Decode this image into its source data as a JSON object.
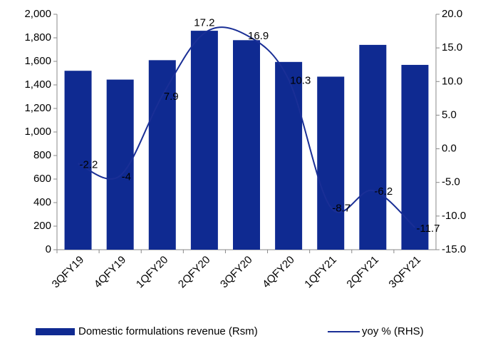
{
  "chart_data": {
    "type": "bar_line",
    "categories": [
      "3QFY19",
      "4QFY19",
      "1QFY20",
      "2QFY20",
      "3QFY20",
      "4QFY20",
      "1QFY21",
      "2QFY21",
      "3QFY21"
    ],
    "series": [
      {
        "name": "Domestic formulations revenue (Rsm)",
        "type": "bar",
        "color": "#0f2a91",
        "values": [
          1520,
          1445,
          1610,
          1860,
          1780,
          1595,
          1470,
          1740,
          1570
        ]
      },
      {
        "name": "yoy % (RHS)",
        "type": "line",
        "axis": "y2",
        "color": "#1a2f96",
        "values": [
          -2.2,
          -4.0,
          7.9,
          17.2,
          16.9,
          10.3,
          -8.7,
          -6.2,
          -11.7
        ]
      }
    ],
    "ylim": [
      0,
      2000
    ],
    "yticks": [
      0,
      200,
      400,
      600,
      800,
      {
        "value": 1000,
        "label": "1,000"
      },
      {
        "value": 1200,
        "label": "1,200"
      },
      {
        "value": 1400,
        "label": "1,400"
      },
      {
        "value": 1600,
        "label": "1,600"
      },
      {
        "value": 1800,
        "label": "1,800"
      },
      {
        "value": 2000,
        "label": "2,000"
      }
    ],
    "y2lim": [
      -15,
      20
    ],
    "y2ticks": [
      {
        "value": -15,
        "label": "-15.0"
      },
      {
        "value": -10,
        "label": "-10.0"
      },
      {
        "value": -5,
        "label": "-5.0"
      },
      {
        "value": 0,
        "label": "0.0"
      },
      {
        "value": 5,
        "label": "5.0"
      },
      {
        "value": 10,
        "label": "10.0"
      },
      {
        "value": 15,
        "label": "15.0"
      },
      {
        "value": 20,
        "label": "20.0"
      }
    ],
    "legend": "bottom"
  }
}
